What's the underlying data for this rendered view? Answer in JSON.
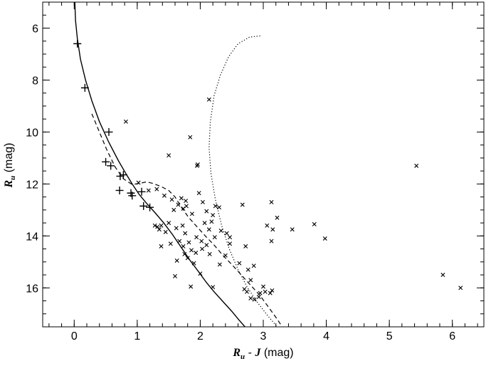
{
  "chart_data": {
    "type": "scatter",
    "xlim": [
      -0.5,
      6.5
    ],
    "ylim": [
      17.5,
      5.0
    ],
    "y_inverted": true,
    "x_ticks": [
      0,
      1,
      2,
      3,
      4,
      5,
      6
    ],
    "x_tick_labels": [
      "0",
      "1",
      "2",
      "3",
      "4",
      "5",
      "6"
    ],
    "x_minor_step": 0.2,
    "y_ticks": [
      6,
      8,
      10,
      12,
      14,
      16
    ],
    "y_tick_labels": [
      "6",
      "8",
      "10",
      "12",
      "14",
      "16"
    ],
    "y_minor_step": 0.5,
    "xlabel": {
      "symbol": "R",
      "sub": "u",
      "mid": " - ",
      "symbol2": "J",
      "unit": " (mag)"
    },
    "ylabel": {
      "symbol": "R",
      "sub": "u",
      "unit": " (mag)"
    },
    "grid": false,
    "legend": "none",
    "series": [
      {
        "marker": "plus",
        "points": [
          [
            0.05,
            6.6
          ],
          [
            0.17,
            8.3
          ],
          [
            0.55,
            10.0
          ],
          [
            0.5,
            11.15
          ],
          [
            0.58,
            11.3
          ],
          [
            0.78,
            11.65
          ],
          [
            0.73,
            11.7
          ],
          [
            0.72,
            12.25
          ],
          [
            0.9,
            12.35
          ],
          [
            0.92,
            12.45
          ],
          [
            1.07,
            12.3
          ],
          [
            1.1,
            12.85
          ],
          [
            1.2,
            12.9
          ]
        ]
      },
      {
        "marker": "x",
        "points": [
          [
            0.82,
            9.6
          ],
          [
            1.02,
            11.95
          ],
          [
            1.5,
            10.9
          ],
          [
            1.84,
            10.2
          ],
          [
            1.96,
            11.25
          ],
          [
            1.95,
            11.3
          ],
          [
            2.14,
            8.75
          ],
          [
            1.18,
            12.25
          ],
          [
            1.31,
            12.2
          ],
          [
            1.43,
            12.45
          ],
          [
            1.55,
            12.6
          ],
          [
            1.7,
            12.55
          ],
          [
            1.77,
            12.65
          ],
          [
            1.78,
            12.85
          ],
          [
            1.73,
            12.95
          ],
          [
            1.58,
            13.0
          ],
          [
            1.98,
            12.35
          ],
          [
            2.04,
            12.7
          ],
          [
            2.24,
            12.85
          ],
          [
            1.87,
            13.15
          ],
          [
            1.28,
            13.6
          ],
          [
            1.32,
            13.65
          ],
          [
            1.38,
            13.6
          ],
          [
            1.35,
            13.75
          ],
          [
            1.45,
            13.85
          ],
          [
            1.5,
            13.5
          ],
          [
            1.62,
            13.7
          ],
          [
            1.72,
            13.6
          ],
          [
            1.76,
            13.9
          ],
          [
            1.82,
            14.25
          ],
          [
            1.94,
            14.05
          ],
          [
            1.67,
            14.2
          ],
          [
            1.73,
            14.4
          ],
          [
            1.86,
            14.55
          ],
          [
            1.75,
            14.7
          ],
          [
            1.8,
            14.85
          ],
          [
            1.93,
            14.65
          ],
          [
            2.03,
            14.5
          ],
          [
            2.02,
            14.2
          ],
          [
            2.1,
            14.35
          ],
          [
            2.15,
            14.7
          ],
          [
            2.14,
            13.75
          ],
          [
            2.23,
            14.05
          ],
          [
            2.07,
            13.5
          ],
          [
            2.18,
            13.45
          ],
          [
            2.33,
            13.8
          ],
          [
            2.42,
            13.9
          ],
          [
            2.47,
            14.05
          ],
          [
            2.4,
            14.75
          ],
          [
            2.47,
            14.3
          ],
          [
            2.67,
            12.8
          ],
          [
            2.72,
            14.4
          ],
          [
            2.62,
            15.05
          ],
          [
            2.76,
            15.3
          ],
          [
            2.8,
            15.7
          ],
          [
            2.85,
            15.15
          ],
          [
            2.7,
            16.05
          ],
          [
            2.74,
            16.15
          ],
          [
            2.8,
            16.4
          ],
          [
            2.86,
            16.45
          ],
          [
            2.93,
            16.35
          ],
          [
            2.95,
            16.2
          ],
          [
            3.03,
            16.15
          ],
          [
            3.11,
            16.2
          ],
          [
            3.14,
            16.1
          ],
          [
            3.0,
            15.95
          ],
          [
            3.06,
            13.6
          ],
          [
            3.13,
            12.7
          ],
          [
            3.15,
            13.75
          ],
          [
            3.22,
            13.3
          ],
          [
            3.13,
            14.2
          ],
          [
            3.46,
            13.75
          ],
          [
            3.81,
            13.55
          ],
          [
            3.98,
            14.1
          ],
          [
            5.43,
            11.3
          ],
          [
            5.85,
            15.5
          ],
          [
            6.13,
            16.0
          ],
          [
            1.85,
            15.95
          ],
          [
            2.2,
            15.97
          ],
          [
            1.6,
            15.55
          ],
          [
            1.38,
            14.4
          ],
          [
            1.53,
            14.3
          ],
          [
            1.63,
            14.95
          ],
          [
            1.9,
            15.05
          ],
          [
            2.0,
            15.45
          ],
          [
            2.31,
            15.1
          ],
          [
            2.2,
            13.2
          ],
          [
            2.3,
            12.9
          ],
          [
            2.1,
            13.05
          ],
          [
            1.65,
            12.8
          ]
        ]
      }
    ],
    "curves": [
      {
        "style": "solid",
        "points": [
          [
            0.01,
            5.0
          ],
          [
            0.02,
            5.7
          ],
          [
            0.05,
            6.4
          ],
          [
            0.1,
            7.2
          ],
          [
            0.18,
            8.0
          ],
          [
            0.28,
            8.8
          ],
          [
            0.4,
            9.6
          ],
          [
            0.55,
            10.4
          ],
          [
            0.7,
            11.1
          ],
          [
            0.82,
            11.6
          ],
          [
            0.92,
            12.0
          ],
          [
            1.03,
            12.4
          ],
          [
            1.15,
            12.75
          ],
          [
            1.28,
            13.1
          ],
          [
            1.42,
            13.5
          ],
          [
            1.56,
            13.95
          ],
          [
            1.7,
            14.45
          ],
          [
            1.84,
            14.95
          ],
          [
            1.98,
            15.4
          ],
          [
            2.1,
            15.8
          ],
          [
            2.22,
            16.15
          ],
          [
            2.35,
            16.5
          ],
          [
            2.5,
            16.9
          ],
          [
            2.62,
            17.25
          ],
          [
            2.71,
            17.5
          ]
        ]
      },
      {
        "style": "dashed",
        "points": [
          [
            0.28,
            9.3
          ],
          [
            0.4,
            10.0
          ],
          [
            0.52,
            10.7
          ],
          [
            0.65,
            11.35
          ],
          [
            0.78,
            11.8
          ],
          [
            0.92,
            12.02
          ],
          [
            1.05,
            11.97
          ],
          [
            1.15,
            11.92
          ],
          [
            1.25,
            11.98
          ],
          [
            1.38,
            12.1
          ],
          [
            1.5,
            12.25
          ],
          [
            1.6,
            12.5
          ],
          [
            1.7,
            12.9
          ],
          [
            1.82,
            13.3
          ],
          [
            1.95,
            13.65
          ],
          [
            2.08,
            14.0
          ],
          [
            2.22,
            14.35
          ],
          [
            2.36,
            14.75
          ],
          [
            2.5,
            15.1
          ],
          [
            2.65,
            15.5
          ],
          [
            2.8,
            15.9
          ],
          [
            2.95,
            16.3
          ],
          [
            3.1,
            16.8
          ],
          [
            3.22,
            17.2
          ],
          [
            3.3,
            17.5
          ]
        ]
      },
      {
        "style": "dotted",
        "points": [
          [
            2.95,
            6.3
          ],
          [
            2.78,
            6.35
          ],
          [
            2.6,
            6.6
          ],
          [
            2.45,
            7.1
          ],
          [
            2.32,
            7.8
          ],
          [
            2.22,
            8.6
          ],
          [
            2.16,
            9.6
          ],
          [
            2.14,
            10.6
          ],
          [
            2.17,
            11.6
          ],
          [
            2.24,
            12.6
          ],
          [
            2.34,
            13.6
          ],
          [
            2.46,
            14.5
          ],
          [
            2.6,
            15.3
          ],
          [
            2.75,
            16.0
          ],
          [
            2.92,
            16.6
          ],
          [
            3.08,
            17.1
          ],
          [
            3.22,
            17.5
          ]
        ]
      }
    ]
  }
}
